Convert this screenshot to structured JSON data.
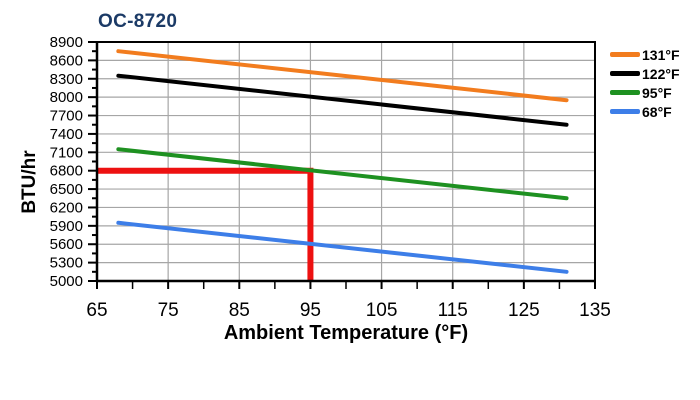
{
  "title": {
    "text": "OC-8720"
  },
  "colors": {
    "title": "#1B3A66",
    "gridline": "#A6A6A6",
    "axis": "#000000",
    "background": "#FFFFFF",
    "annotation": "#ED1111"
  },
  "axes": {
    "x": {
      "title": "Ambient Temperature (°F)",
      "min": 65,
      "max": 135,
      "major_step": 10,
      "minor_step": 5,
      "tick_labels": [
        "65",
        "75",
        "85",
        "95",
        "105",
        "115",
        "125",
        "135"
      ]
    },
    "y": {
      "title": "BTU/hr",
      "min": 5000,
      "max": 8900,
      "major_step": 300,
      "minor_step": 150,
      "tick_labels": [
        "5000",
        "5300",
        "5600",
        "5900",
        "6200",
        "6500",
        "6800",
        "7100",
        "7400",
        "7700",
        "8000",
        "8300",
        "8600",
        "8900"
      ]
    }
  },
  "legend": {
    "position": "outside-top-right"
  },
  "chart_data": {
    "type": "line",
    "title": "OC-8720",
    "xlabel": "Ambient Temperature (°F)",
    "ylabel": "BTU/hr",
    "xlim": [
      65,
      135
    ],
    "ylim": [
      5000,
      8900
    ],
    "grid": true,
    "series": [
      {
        "name": "131°F",
        "color": "#F27C1E",
        "x": [
          68,
          131
        ],
        "values": [
          8750,
          7950
        ]
      },
      {
        "name": "122°F",
        "color": "#000000",
        "x": [
          68,
          131
        ],
        "values": [
          8350,
          7550
        ]
      },
      {
        "name": "95°F",
        "color": "#1E9121",
        "x": [
          68,
          131
        ],
        "values": [
          7150,
          6350
        ]
      },
      {
        "name": "68°F",
        "color": "#3D7EE8",
        "x": [
          68,
          131
        ],
        "values": [
          5950,
          5150
        ]
      }
    ],
    "annotation": {
      "type": "crosshair",
      "color": "#ED1111",
      "x": 95,
      "y": 6800
    }
  }
}
